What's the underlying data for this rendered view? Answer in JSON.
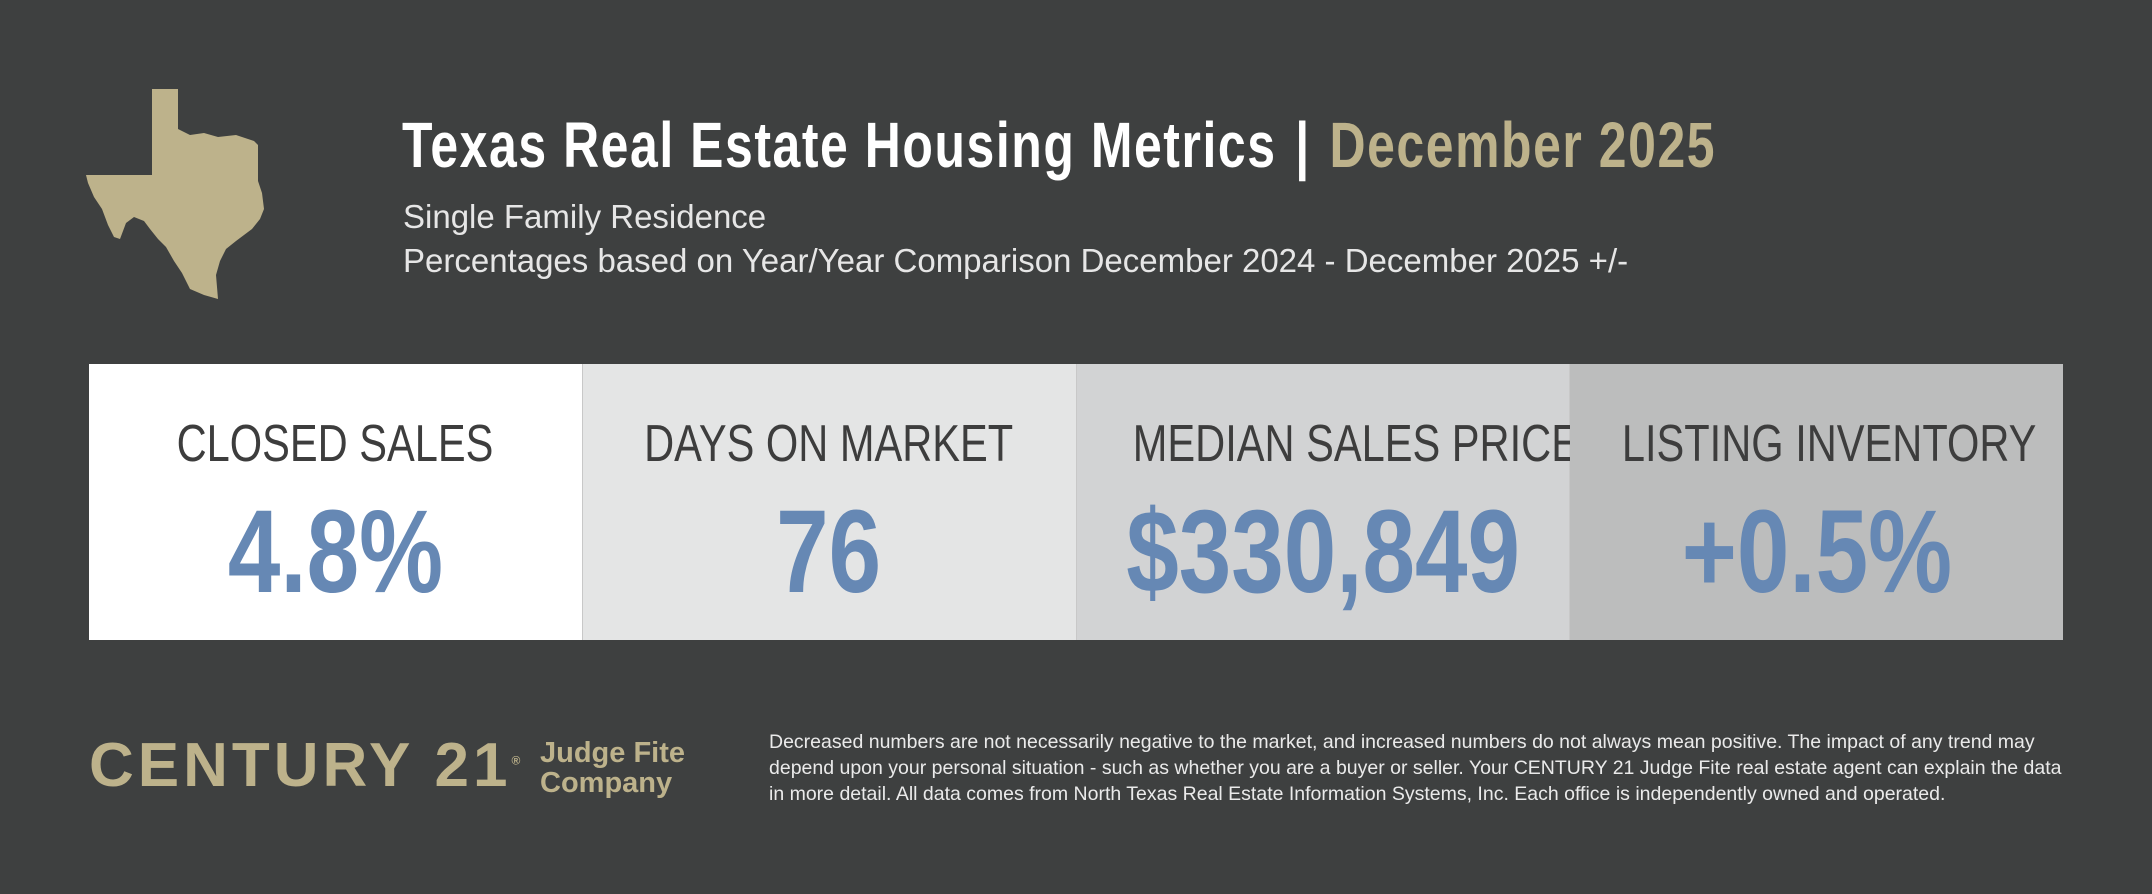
{
  "header": {
    "title": "Texas Real Estate Housing Metrics",
    "separator": "|",
    "date": "December 2025",
    "subtitle": "Single Family Residence",
    "comparison": "Percentages based on Year/Year Comparison December 2024 - December 2025 +/-"
  },
  "metrics": [
    {
      "label": "CLOSED SALES",
      "value": "4.8%",
      "bg": "#ffffff"
    },
    {
      "label": "DAYS ON MARKET",
      "value": "76",
      "bg": "#e4e5e5"
    },
    {
      "label": "MEDIAN SALES PRICE",
      "value": "$330,849",
      "bg": "#d2d3d4"
    },
    {
      "label": "LISTING INVENTORY",
      "value": "+0.5%",
      "bg": "#bcbdbd"
    }
  ],
  "footer": {
    "brand": "CENTURY 21",
    "brand_mark": "®",
    "office_line1": "Judge Fite",
    "office_line2": "Company",
    "disclaimer": "Decreased numbers are not necessarily negative to the market, and increased numbers do not always mean positive. The impact of any trend may depend upon your personal situation - such as whether you are a buyer or seller. Your CENTURY 21 Judge Fite real estate agent can explain the data in more detail. All data comes from North Texas Real Estate Information Systems, Inc. Each office is independently owned and operated."
  },
  "colors": {
    "background": "#3e4040",
    "gold": "#bdb28b",
    "value": "#6688b4"
  }
}
